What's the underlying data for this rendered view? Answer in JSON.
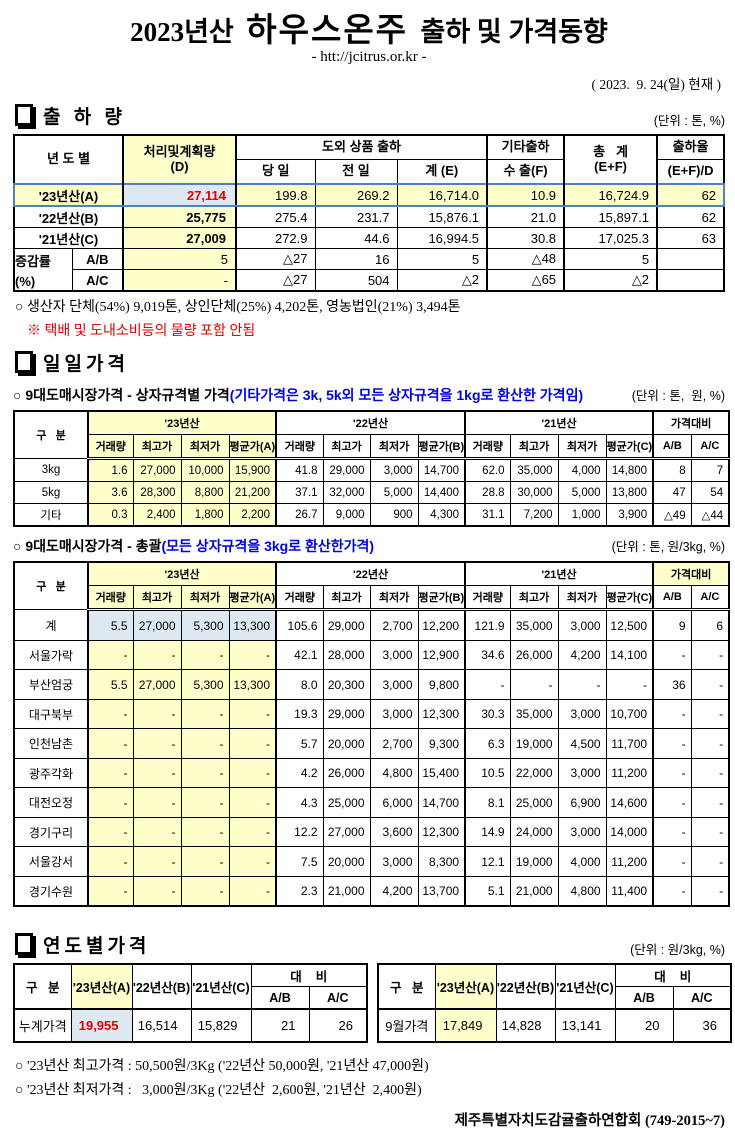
{
  "header": {
    "title_prefix": "2023년산",
    "title_main": "하우스온주",
    "title_suffix": "출하 및 가격동향",
    "url": "- htt://jcitrus.or.kr -",
    "date": "( 2023.  9. 24(일) 현재 )"
  },
  "colors": {
    "highlight_yellow": "#FFFFCC",
    "highlight_blue": "#DDE8F1",
    "accent_red": "#E00000",
    "accent_blue": "#0000E6",
    "row_outline_blue": "#4F81BD"
  },
  "shipment": {
    "section_title": "출 하 량",
    "unit": "(단위 : 톤, %)"
  },
  "shipment_table": {
    "h_year": "년 도 별",
    "h_d1": "처리및계획량",
    "h_d2": "(D)",
    "h_group": "도외 상품 출하",
    "h_today": "당 일",
    "h_prev": "전 일",
    "h_sum": "계 (E)",
    "h_etc1": "기타출하",
    "h_etc2": "수 출(F)",
    "h_total1": "총   계",
    "h_total2": "(E+F)",
    "h_rate1": "출하율",
    "h_rate2": "(E+F)/D",
    "rows": {
      "a": {
        "label": "'23년산(A)",
        "d": "27,114",
        "c1": "199.8",
        "c2": "269.2",
        "c3": "16,714.0",
        "c4": "10.9",
        "c5": "16,724.9",
        "c6": "62"
      },
      "b": {
        "label": "'22년산(B)",
        "d": "25,775",
        "c1": "275.4",
        "c2": "231.7",
        "c3": "15,876.1",
        "c4": "21.0",
        "c5": "15,897.1",
        "c6": "62"
      },
      "c": {
        "label": "'21년산(C)",
        "d": "27,009",
        "c1": "272.9",
        "c2": "44.6",
        "c3": "16,994.5",
        "c4": "30.8",
        "c5": "17,025.3",
        "c6": "63"
      }
    },
    "change": {
      "label1": "증감률",
      "label2": "(%)",
      "ab": {
        "label": "A/B",
        "d": "5",
        "c1": "△27",
        "c2": "16",
        "c3": "5",
        "c4": "△48",
        "c5": "5",
        "c6": ""
      },
      "ac": {
        "label": "A/C",
        "d": "-",
        "c1": "△27",
        "c2": "504",
        "c3": "△2",
        "c4": "△65",
        "c5": "△2",
        "c6": ""
      }
    }
  },
  "shipment_notes": {
    "note1": "○ 생산자 단체(54%) 9,019톤, 상인단체(25%) 4,202톤, 영농법인(21%) 3,494톤",
    "note2": "※ 택배 및 도내소비등의 물량 포함 안됨"
  },
  "daily": {
    "section_title": "일일가격",
    "sub1": {
      "label": "○ 9대도매시장가격 - 상자규격별 가격",
      "note": "(기타가격은 3k, 5k외 모든 상자규격을 1kg로 환산한 가격임)",
      "unit": "(단위 : 톤,  원, %)"
    },
    "sub2": {
      "label": "○ 9대도매시장가격 - 총괄",
      "note": "(모든 상자규격을 3kg로 환산한가격)",
      "unit": "(단위 : 톤, 원/3kg, %)"
    },
    "headers": {
      "gubun": "구   분",
      "y23": "'23년산",
      "y22": "'22년산",
      "y21": "'21년산",
      "compare": "가격대비",
      "vol": "거래량",
      "high": "최고가",
      "low": "최저가",
      "avg_a": "평균가(A)",
      "avg_b": "평균가(B)",
      "avg_c": "평균가(C)",
      "ab": "A/B",
      "ac": "A/C"
    },
    "by_size_rows": [
      [
        "3kg",
        "1.6",
        "27,000",
        "10,000",
        "15,900",
        "41.8",
        "29,000",
        "3,000",
        "14,700",
        "62.0",
        "35,000",
        "4,000",
        "14,800",
        "8",
        "7"
      ],
      [
        "5kg",
        "3.6",
        "28,300",
        "8,800",
        "21,200",
        "37.1",
        "32,000",
        "5,000",
        "14,400",
        "28.8",
        "30,000",
        "5,000",
        "13,800",
        "47",
        "54"
      ],
      [
        "기타",
        "0.3",
        "2,400",
        "1,800",
        "2,200",
        "26.7",
        "9,000",
        "900",
        "4,300",
        "31.1",
        "7,200",
        "1,000",
        "3,900",
        "△49",
        "△44"
      ]
    ],
    "total_rows": [
      [
        "계",
        "5.5",
        "27,000",
        "5,300",
        "13,300",
        "105.6",
        "29,000",
        "2,700",
        "12,200",
        "121.9",
        "35,000",
        "3,000",
        "12,500",
        "9",
        "6"
      ],
      [
        "서울가락",
        "-",
        "-",
        "-",
        "-",
        "42.1",
        "28,000",
        "3,000",
        "12,900",
        "34.6",
        "26,000",
        "4,200",
        "14,100",
        "-",
        "-"
      ],
      [
        "부산엄궁",
        "5.5",
        "27,000",
        "5,300",
        "13,300",
        "8.0",
        "20,300",
        "3,000",
        "9,800",
        "-",
        "-",
        "-",
        "-",
        "36",
        "-"
      ],
      [
        "대구북부",
        "-",
        "-",
        "-",
        "-",
        "19.3",
        "29,000",
        "3,000",
        "12,300",
        "30.3",
        "35,000",
        "3,000",
        "10,700",
        "-",
        "-"
      ],
      [
        "인천남촌",
        "-",
        "-",
        "-",
        "-",
        "5.7",
        "20,000",
        "2,700",
        "9,300",
        "6.3",
        "19,000",
        "4,500",
        "11,700",
        "-",
        "-"
      ],
      [
        "광주각화",
        "-",
        "-",
        "-",
        "-",
        "4.2",
        "26,000",
        "4,800",
        "15,400",
        "10.5",
        "22,000",
        "3,000",
        "11,200",
        "-",
        "-"
      ],
      [
        "대전오정",
        "-",
        "-",
        "-",
        "-",
        "4.3",
        "25,000",
        "6,000",
        "14,700",
        "8.1",
        "25,000",
        "6,900",
        "14,600",
        "-",
        "-"
      ],
      [
        "경기구리",
        "-",
        "-",
        "-",
        "-",
        "12.2",
        "27,000",
        "3,600",
        "12,300",
        "14.9",
        "24,000",
        "3,000",
        "14,000",
        "-",
        "-"
      ],
      [
        "서울강서",
        "-",
        "-",
        "-",
        "-",
        "7.5",
        "20,000",
        "3,000",
        "8,300",
        "12.1",
        "19,000",
        "4,000",
        "11,200",
        "-",
        "-"
      ],
      [
        "경기수원",
        "-",
        "-",
        "-",
        "-",
        "2.3",
        "21,000",
        "4,200",
        "13,700",
        "5.1",
        "21,000",
        "4,800",
        "11,400",
        "-",
        "-"
      ]
    ]
  },
  "annual": {
    "section_title": "연도별가격",
    "unit": "(단위 : 원/3kg, %)",
    "headers": {
      "gubun": "구   분",
      "ya": "'23년산(A)",
      "yb": "'22년산(B)",
      "yc": "'21년산(C)",
      "daebi": "대    비",
      "ab": "A/B",
      "ac": "A/C"
    },
    "left": {
      "label": "누계가격",
      "a": "19,955",
      "b": "16,514",
      "c": "15,829",
      "ab": "21",
      "ac": "26"
    },
    "right": {
      "label": "9월가격",
      "a": "17,849",
      "b": "14,828",
      "c": "13,141",
      "ab": "20",
      "ac": "36"
    }
  },
  "footer": {
    "note1": "○ '23년산 최고가격 : 50,500원/3Kg ('22년산 50,000원, '21년산 47,000원)",
    "note2": "○ '23년산 최저가격 :   3,000원/3Kg ('22년산  2,600원, '21년산  2,400원)",
    "org": "제주특별자치도감귤출하연합회 (749-2015~7)"
  }
}
